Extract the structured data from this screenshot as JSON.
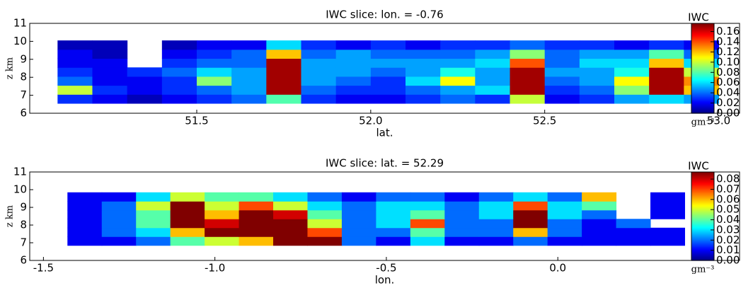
{
  "chart_data": [
    {
      "type": "heatmap",
      "title": "IWC slice: lon. = -0.76",
      "xlabel": "lat.",
      "ylabel": "z km",
      "xlim": [
        51.02,
        53.06
      ],
      "ylim": [
        6,
        11
      ],
      "xticks": [
        51.5,
        {
          "value": 52.0,
          "label": "52.0"
        },
        52.5,
        {
          "value": 53.0,
          "label": "53.0"
        }
      ],
      "yticks": [
        6,
        7,
        8,
        9,
        10,
        11
      ],
      "x": [
        51.15,
        51.25,
        51.35,
        51.45,
        51.55,
        51.65,
        51.75,
        51.85,
        51.95,
        52.05,
        52.15,
        52.25,
        52.35,
        52.45,
        52.55,
        52.65,
        52.75,
        52.85,
        52.95
      ],
      "y": [
        6.8,
        7.3,
        7.8,
        8.3,
        8.8,
        9.3,
        9.8
      ],
      "z": [
        [
          0.03,
          0.02,
          0.01,
          0.02,
          0.03,
          0.04,
          0.08,
          0.03,
          0.02,
          0.02,
          0.03,
          0.04,
          0.03,
          0.1,
          0.02,
          0.03,
          0.05,
          0.06,
          0.05
        ],
        [
          0.1,
          0.03,
          0.02,
          0.03,
          0.04,
          0.05,
          0.17,
          0.04,
          0.03,
          0.03,
          0.04,
          0.05,
          0.06,
          0.17,
          0.03,
          0.04,
          0.09,
          0.17,
          0.12
        ],
        [
          0.04,
          0.02,
          0.02,
          0.03,
          0.09,
          0.05,
          0.17,
          0.05,
          0.04,
          0.03,
          0.06,
          0.11,
          0.05,
          0.17,
          0.04,
          0.05,
          0.11,
          0.17,
          0.13
        ],
        [
          0.03,
          0.02,
          0.03,
          0.04,
          0.06,
          0.05,
          0.17,
          0.05,
          0.05,
          0.04,
          0.05,
          0.07,
          0.05,
          0.17,
          0.05,
          0.05,
          0.07,
          0.17,
          0.1
        ],
        [
          0.02,
          0.02,
          null,
          0.03,
          0.04,
          0.04,
          0.17,
          0.05,
          0.05,
          0.05,
          0.05,
          0.05,
          0.06,
          0.14,
          0.04,
          0.06,
          0.06,
          0.12,
          0.06
        ],
        [
          0.02,
          0.01,
          null,
          0.02,
          0.03,
          0.04,
          0.12,
          0.04,
          0.05,
          0.04,
          0.04,
          0.04,
          0.05,
          0.09,
          0.04,
          0.05,
          0.05,
          0.08,
          0.04
        ],
        [
          0.01,
          0.01,
          null,
          0.01,
          0.02,
          0.02,
          0.06,
          0.03,
          0.02,
          0.03,
          0.02,
          0.03,
          0.03,
          0.04,
          0.03,
          0.03,
          0.02,
          0.03,
          0.02
        ]
      ],
      "colorbar": {
        "label": "IWC",
        "unit": "gm⁻³",
        "lim": [
          0,
          0.176
        ],
        "ticks": [
          {
            "value": 0,
            "label": "0.00"
          },
          {
            "value": 0.02,
            "label": "0.02"
          },
          {
            "value": 0.04,
            "label": "0.04"
          },
          {
            "value": 0.06,
            "label": "0.06"
          },
          {
            "value": 0.08,
            "label": "0.08"
          },
          {
            "value": 0.1,
            "label": "0.10"
          },
          {
            "value": 0.12,
            "label": "0.12"
          },
          {
            "value": 0.14,
            "label": "0.14"
          },
          {
            "value": 0.16,
            "label": "0.16"
          }
        ]
      }
    },
    {
      "type": "heatmap",
      "title": "IWC slice: lat. = 52.29",
      "xlabel": "lon.",
      "ylabel": "z km",
      "xlim": [
        -1.54,
        0.53
      ],
      "ylim": [
        6,
        11
      ],
      "xticks": [
        -1.5,
        {
          "value": -1.0,
          "label": "-1.0"
        },
        -0.5,
        {
          "value": 0.0,
          "label": "0.0"
        }
      ],
      "yticks": [
        6,
        7,
        8,
        9,
        10,
        11
      ],
      "x": [
        -1.38,
        -1.28,
        -1.18,
        -1.08,
        -0.98,
        -0.88,
        -0.78,
        -0.68,
        -0.58,
        -0.48,
        -0.38,
        -0.28,
        -0.18,
        -0.08,
        0.02,
        0.12,
        0.22,
        0.32
      ],
      "y": [
        7.1,
        7.6,
        8.1,
        8.6,
        9.1,
        9.6
      ],
      "z": [
        [
          0.01,
          0.01,
          0.02,
          0.04,
          0.05,
          0.06,
          0.09,
          0.09,
          0.02,
          0.01,
          0.03,
          0.01,
          0.01,
          0.02,
          0.01,
          0.01,
          0.01,
          0.01
        ],
        [
          0.01,
          0.02,
          0.03,
          0.06,
          0.09,
          0.09,
          0.09,
          0.07,
          0.02,
          0.02,
          0.04,
          0.02,
          0.02,
          0.06,
          0.02,
          0.01,
          0.01,
          0.01
        ],
        [
          0.01,
          0.02,
          0.04,
          0.09,
          0.08,
          0.09,
          0.09,
          0.05,
          0.02,
          0.03,
          0.07,
          0.02,
          0.02,
          0.09,
          0.02,
          0.01,
          0.02,
          null
        ],
        [
          0.01,
          0.02,
          0.04,
          0.09,
          0.06,
          0.09,
          0.08,
          0.04,
          0.02,
          0.03,
          0.04,
          0.02,
          0.03,
          0.09,
          0.03,
          0.02,
          null,
          0.01
        ],
        [
          0.01,
          0.02,
          0.05,
          0.09,
          0.05,
          0.07,
          0.05,
          0.03,
          0.02,
          0.03,
          0.03,
          0.02,
          0.03,
          0.07,
          0.03,
          0.04,
          null,
          0.01
        ],
        [
          0.01,
          0.01,
          0.03,
          0.05,
          0.04,
          0.04,
          0.03,
          0.02,
          0.01,
          0.02,
          0.02,
          0.01,
          0.02,
          0.03,
          0.02,
          0.06,
          null,
          0.01
        ]
      ],
      "colorbar": {
        "label": "IWC",
        "unit": "gm⁻³",
        "lim": [
          0,
          0.087
        ],
        "ticks": [
          {
            "value": 0,
            "label": "0.00"
          },
          {
            "value": 0.01,
            "label": "0.01"
          },
          {
            "value": 0.02,
            "label": "0.02"
          },
          {
            "value": 0.03,
            "label": "0.03"
          },
          {
            "value": 0.04,
            "label": "0.04"
          },
          {
            "value": 0.05,
            "label": "0.05"
          },
          {
            "value": 0.06,
            "label": "0.06"
          },
          {
            "value": 0.07,
            "label": "0.07"
          },
          {
            "value": 0.08,
            "label": "0.08"
          }
        ]
      }
    }
  ]
}
